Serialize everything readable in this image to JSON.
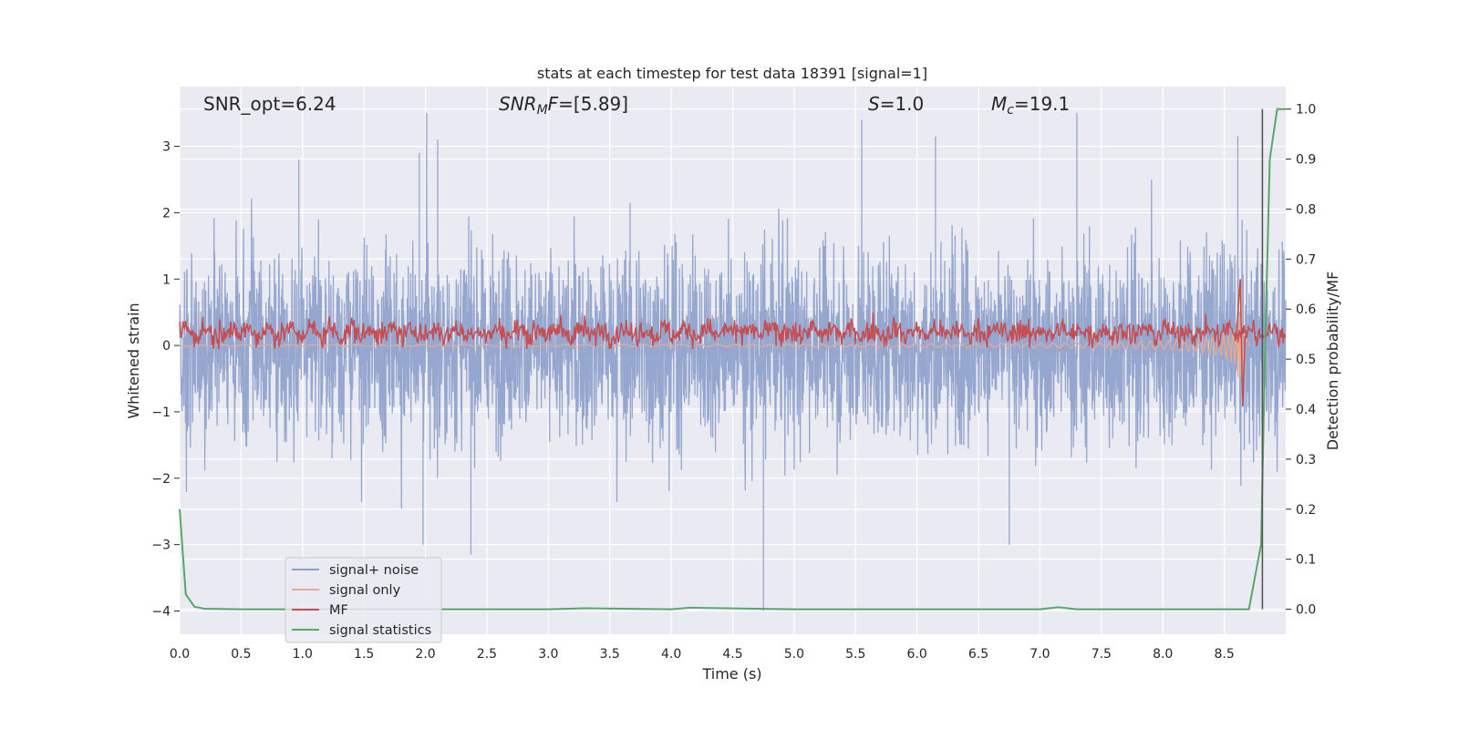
{
  "chart_data": {
    "type": "line",
    "title": "stats at each timestep for test data 18391 [signal=1]",
    "xlabel": "Time (s)",
    "ylabel": "Whitened strain",
    "ylabel_right": "Detection probability/MF",
    "xlim": [
      0.0,
      9.0
    ],
    "ylim": [
      -4.35,
      3.9
    ],
    "ylim_right": [
      -0.05,
      1.045
    ],
    "xticks": [
      "0.0",
      "0.5",
      "1.0",
      "1.5",
      "2.0",
      "2.5",
      "3.0",
      "3.5",
      "4.0",
      "4.5",
      "5.0",
      "5.5",
      "6.0",
      "6.5",
      "7.0",
      "7.5",
      "8.0",
      "8.5"
    ],
    "yticks": [
      "−4",
      "−3",
      "−2",
      "−1",
      "0",
      "1",
      "2",
      "3"
    ],
    "yticks_right": [
      "0.0",
      "0.1",
      "0.2",
      "0.3",
      "0.4",
      "0.5",
      "0.6",
      "0.7",
      "0.8",
      "0.9",
      "1.0"
    ],
    "grid": true,
    "legend_position": "lower-left",
    "annotations": {
      "snr_opt": "SNR_opt=6.24",
      "snr_mf": "=[5.89]",
      "snr_mf_base": "SNR",
      "snr_mf_sub": "M",
      "snr_mf_tail": "F",
      "s_label": "S",
      "s_value": "=1.0",
      "mc_label": "M",
      "mc_sub": "c",
      "mc_value": "=19.1"
    },
    "series": [
      {
        "name": "signal+ noise",
        "color": "#8da0cb",
        "axis": "left",
        "description_values": {
          "approx_range": [
            -4.0,
            3.5
          ],
          "peak_points": [
            {
              "x": 0.97,
              "y": 2.8
            },
            {
              "x": 1.95,
              "y": 2.9
            },
            {
              "x": 1.98,
              "y": -3.0
            },
            {
              "x": 2.1,
              "y": 3.1
            },
            {
              "x": 2.37,
              "y": -3.15
            },
            {
              "x": 4.75,
              "y": -4.0
            },
            {
              "x": 5.55,
              "y": 3.4
            },
            {
              "x": 6.15,
              "y": 3.15
            },
            {
              "x": 7.3,
              "y": 3.5
            },
            {
              "x": 6.75,
              "y": -3.0
            },
            {
              "x": 8.61,
              "y": 3.15
            }
          ]
        }
      },
      {
        "name": "signal only",
        "color": "#e8a98f",
        "axis": "left",
        "description_values": {
          "chirp_start": 6.5,
          "merger_time": 8.65,
          "max_amplitude": 1.0
        }
      },
      {
        "name": "MF",
        "color": "#c44e52",
        "axis": "left",
        "description_values": {
          "approx_range": [
            0.0,
            0.55
          ],
          "peak": {
            "x": 8.63,
            "y": 1.0
          },
          "trough": {
            "x": 8.65,
            "y": -0.92
          }
        }
      },
      {
        "name": "signal statistics",
        "color": "#55a868",
        "axis": "right",
        "x": [
          0.0,
          0.05,
          0.12,
          0.2,
          0.5,
          1.0,
          2.0,
          3.0,
          3.3,
          4.0,
          4.15,
          5.0,
          6.0,
          7.0,
          7.15,
          7.3,
          8.0,
          8.7,
          8.8,
          8.83,
          8.87,
          8.93,
          9.0
        ],
        "values": [
          0.2,
          0.03,
          0.005,
          0.001,
          0.0,
          0.0,
          0.0,
          0.0,
          0.002,
          0.0,
          0.003,
          0.0,
          0.0,
          0.0,
          0.004,
          0.0,
          0.0,
          0.0,
          0.13,
          0.5,
          0.9,
          1.0,
          1.0
        ]
      }
    ],
    "vertical_line": {
      "x": 8.81,
      "color": "#555555"
    }
  }
}
